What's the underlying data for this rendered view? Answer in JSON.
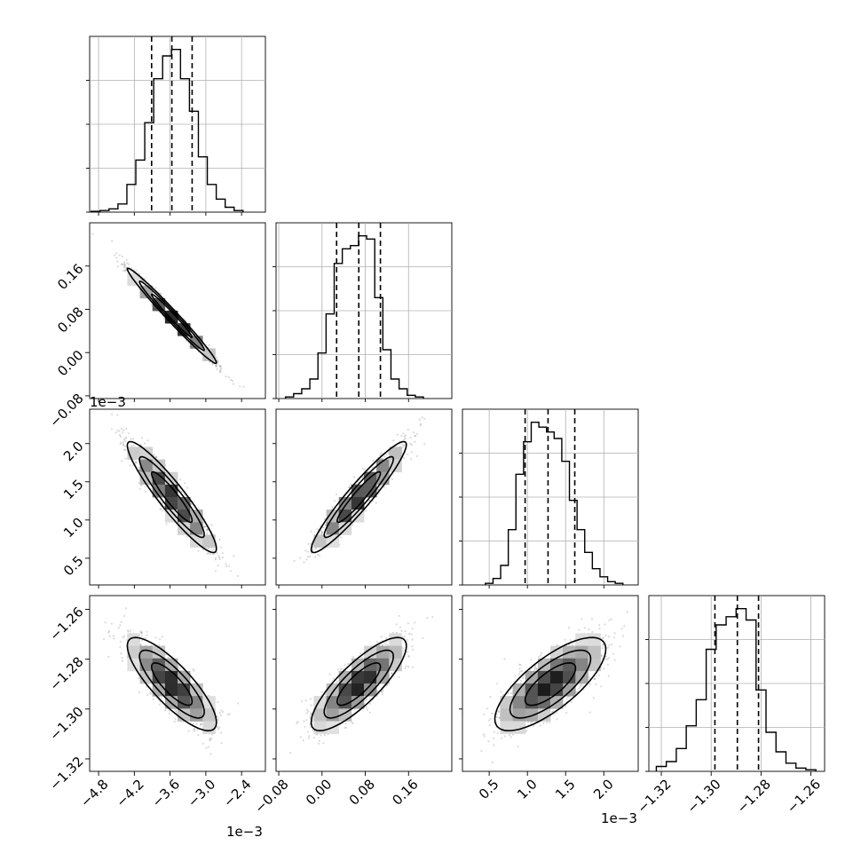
{
  "chart_data": {
    "type": "corner",
    "parameters": 4,
    "colors": {
      "ink": "#000000",
      "grid": "#b0b0b0",
      "points": "#7a7a7a"
    },
    "grid": true,
    "axes": [
      {
        "range": [
          -4.95,
          -2.0
        ],
        "ticks": [
          -4.8,
          -4.2,
          -3.6,
          -3.0,
          -2.4
        ],
        "tick_labels": [
          "−4.8",
          "−4.2",
          "−3.6",
          "−3.0",
          "−2.4"
        ],
        "offset_label": "1e−3",
        "mean": -3.57,
        "sd": 0.34
      },
      {
        "range": [
          -0.085,
          0.24
        ],
        "ticks": [
          -0.08,
          0.0,
          0.08,
          0.16
        ],
        "tick_labels": [
          "−0.08",
          "0.00",
          "0.08",
          "0.16"
        ],
        "offset_label": "",
        "mean": 0.068,
        "sd": 0.04
      },
      {
        "range": [
          0.15,
          2.45
        ],
        "ticks": [
          0.5,
          1.0,
          1.5,
          2.0
        ],
        "tick_labels": [
          "0.5",
          "1.0",
          "1.5",
          "2.0"
        ],
        "offset_label": "1e−3",
        "mean": 1.3,
        "sd": 0.33
      },
      {
        "range": [
          -1.325,
          -1.2545
        ],
        "ticks": [
          -1.32,
          -1.3,
          -1.28,
          -1.26
        ],
        "tick_labels": [
          "−1.32",
          "−1.30",
          "−1.28",
          "−1.26"
        ],
        "offset_label": "",
        "mean": -1.29,
        "sd": 0.0085
      }
    ],
    "histograms": [
      {
        "bins": [
          [
            -4.85,
            0.005
          ],
          [
            -4.7,
            0.01
          ],
          [
            -4.55,
            0.02
          ],
          [
            -4.4,
            0.05
          ],
          [
            -4.25,
            0.17
          ],
          [
            -4.1,
            0.32
          ],
          [
            -3.95,
            0.55
          ],
          [
            -3.8,
            0.82
          ],
          [
            -3.65,
            0.96
          ],
          [
            -3.5,
            1.0
          ],
          [
            -3.35,
            0.82
          ],
          [
            -3.2,
            0.62
          ],
          [
            -3.05,
            0.34
          ],
          [
            -2.9,
            0.17
          ],
          [
            -2.75,
            0.08
          ],
          [
            -2.6,
            0.03
          ],
          [
            -2.45,
            0.01
          ]
        ],
        "bin_width": 0.15,
        "quantiles": [
          -3.91,
          -3.57,
          -3.23
        ]
      },
      {
        "bins": [
          [
            -0.06,
            0.01
          ],
          [
            -0.045,
            0.03
          ],
          [
            -0.03,
            0.06
          ],
          [
            -0.015,
            0.12
          ],
          [
            0.0,
            0.28
          ],
          [
            0.015,
            0.52
          ],
          [
            0.03,
            0.83
          ],
          [
            0.045,
            0.92
          ],
          [
            0.06,
            0.94
          ],
          [
            0.075,
            1.0
          ],
          [
            0.09,
            0.98
          ],
          [
            0.105,
            0.62
          ],
          [
            0.12,
            0.3
          ],
          [
            0.135,
            0.12
          ],
          [
            0.15,
            0.06
          ],
          [
            0.165,
            0.02
          ],
          [
            0.18,
            0.01
          ]
        ],
        "bin_width": 0.015,
        "quantiles": [
          0.027,
          0.068,
          0.108
        ]
      },
      {
        "bins": [
          [
            0.5,
            0.01
          ],
          [
            0.6,
            0.04
          ],
          [
            0.7,
            0.12
          ],
          [
            0.8,
            0.34
          ],
          [
            0.9,
            0.68
          ],
          [
            1.0,
            0.88
          ],
          [
            1.1,
            1.0
          ],
          [
            1.2,
            0.97
          ],
          [
            1.3,
            0.94
          ],
          [
            1.4,
            0.9
          ],
          [
            1.5,
            0.76
          ],
          [
            1.6,
            0.52
          ],
          [
            1.7,
            0.34
          ],
          [
            1.8,
            0.2
          ],
          [
            1.9,
            0.1
          ],
          [
            2.0,
            0.05
          ],
          [
            2.1,
            0.02
          ],
          [
            2.2,
            0.01
          ]
        ],
        "bin_width": 0.1,
        "quantiles": [
          0.97,
          1.27,
          1.62
        ]
      },
      {
        "bins": [
          [
            -1.32,
            0.03
          ],
          [
            -1.316,
            0.06
          ],
          [
            -1.312,
            0.14
          ],
          [
            -1.308,
            0.28
          ],
          [
            -1.304,
            0.44
          ],
          [
            -1.3,
            0.75
          ],
          [
            -1.296,
            0.9
          ],
          [
            -1.292,
            0.95
          ],
          [
            -1.288,
            1.0
          ],
          [
            -1.284,
            0.93
          ],
          [
            -1.28,
            0.5
          ],
          [
            -1.276,
            0.24
          ],
          [
            -1.272,
            0.12
          ],
          [
            -1.268,
            0.05
          ],
          [
            -1.264,
            0.02
          ],
          [
            -1.26,
            0.01
          ]
        ],
        "bin_width": 0.004,
        "quantiles": [
          -1.2985,
          -1.2895,
          -1.281
        ]
      }
    ],
    "correlations": [
      {
        "row": 1,
        "col": 0,
        "rho": -0.985
      },
      {
        "row": 2,
        "col": 0,
        "rho": -0.93
      },
      {
        "row": 2,
        "col": 1,
        "rho": 0.945
      },
      {
        "row": 3,
        "col": 0,
        "rho": -0.82
      },
      {
        "row": 3,
        "col": 1,
        "rho": 0.82
      },
      {
        "row": 3,
        "col": 2,
        "rho": 0.75
      }
    ],
    "contour_levels_sigma": [
      1.0,
      1.6,
      2.2
    ],
    "samples_per_panel": 1400
  }
}
